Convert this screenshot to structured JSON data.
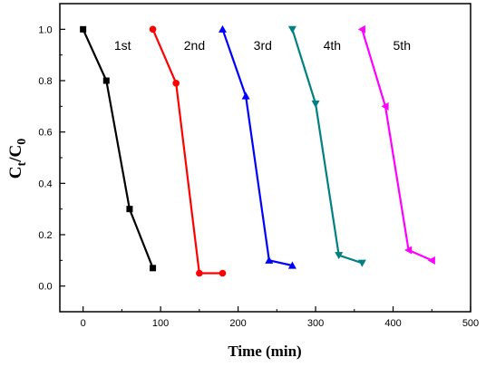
{
  "chart_data": {
    "type": "line",
    "title": "",
    "xlabel": "Time (min)",
    "ylabel_main": "C",
    "ylabel_sub1": "t",
    "ylabel_sep": "/C",
    "ylabel_sub2": "0",
    "xlim": [
      -30,
      500
    ],
    "ylim": [
      -0.1,
      1.1
    ],
    "x_ticks": [
      0,
      100,
      200,
      300,
      400,
      500
    ],
    "y_ticks": [
      0.0,
      0.2,
      0.4,
      0.6,
      0.8,
      1.0
    ],
    "x_tick_labels": [
      "0",
      "100",
      "200",
      "300",
      "400",
      "500"
    ],
    "y_tick_labels": [
      "0.0",
      "0.2",
      "0.4",
      "0.6",
      "0.8",
      "1.0"
    ],
    "grid": false,
    "legend": "none",
    "series": [
      {
        "name": "1st",
        "color": "#000000",
        "marker": "square",
        "x": [
          0,
          30,
          60,
          90
        ],
        "y": [
          1.0,
          0.8,
          0.3,
          0.07
        ]
      },
      {
        "name": "2nd",
        "color": "#ff0000",
        "marker": "circle",
        "x": [
          90,
          120,
          150,
          180
        ],
        "y": [
          1.0,
          0.79,
          0.05,
          0.05
        ]
      },
      {
        "name": "3rd",
        "color": "#0000ff",
        "marker": "triangle-up",
        "x": [
          180,
          210,
          240,
          270
        ],
        "y": [
          1.0,
          0.74,
          0.1,
          0.08
        ]
      },
      {
        "name": "4th",
        "color": "#008080",
        "marker": "triangle-down",
        "x": [
          270,
          300,
          330,
          360
        ],
        "y": [
          1.0,
          0.71,
          0.12,
          0.09
        ]
      },
      {
        "name": "5th",
        "color": "#ff00ff",
        "marker": "triangle-left",
        "x": [
          360,
          390,
          420,
          450
        ],
        "y": [
          1.0,
          0.7,
          0.14,
          0.1
        ]
      }
    ]
  }
}
